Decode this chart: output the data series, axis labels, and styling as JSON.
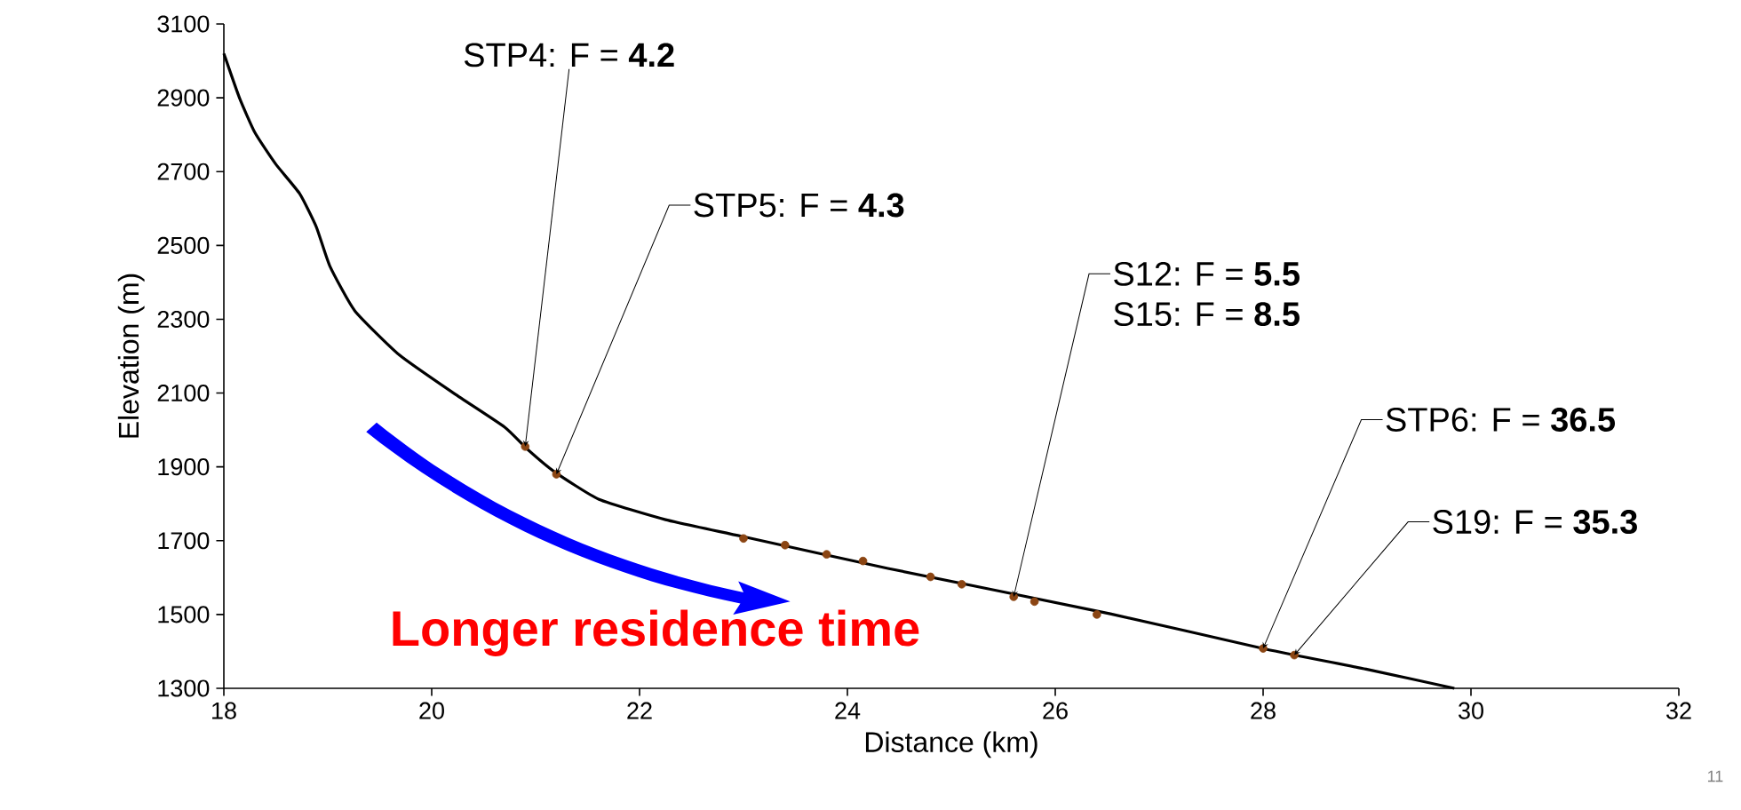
{
  "chart_data": {
    "type": "line",
    "xlabel": "Distance (km)",
    "ylabel": "Elevation (m)",
    "xlim": [
      18,
      32
    ],
    "xticks": [
      18,
      20,
      22,
      24,
      26,
      28,
      30,
      32
    ],
    "ylim": [
      1300,
      3100
    ],
    "yticks": [
      1300,
      1500,
      1700,
      1900,
      2100,
      2300,
      2500,
      2700,
      2900,
      3100
    ],
    "grid": false,
    "series": [
      {
        "color": "#000000",
        "line_style": "solid",
        "x": [
          18,
          18.15,
          18.3,
          18.5,
          18.73,
          18.89,
          19.02,
          19.26,
          19.69,
          20.22,
          20.7,
          20.92,
          21.18,
          21.61,
          22.25,
          22.98,
          24.39,
          26.53,
          28.03,
          28.99,
          29.84
        ],
        "values": [
          3020,
          2900,
          2805,
          2720,
          2640,
          2550,
          2444,
          2323,
          2203,
          2098,
          2008,
          1948,
          1887,
          1812,
          1757,
          1712,
          1625,
          1502,
          1406,
          1352,
          1300
        ]
      },
      {
        "type": "scatter",
        "color": "#8b4513",
        "marker": "circle",
        "x": [
          20.9,
          21.2,
          23,
          23.4,
          23.8,
          24.15,
          24.8,
          25.1,
          25.6,
          25.8,
          26.4,
          28,
          28.3
        ],
        "values": [
          1955,
          1880,
          1706,
          1688,
          1663,
          1645,
          1602,
          1582,
          1548,
          1535,
          1500,
          1408,
          1390
        ]
      }
    ],
    "annotations": [
      {
        "text": "STP4: F = **4.2**",
        "x": 20.9,
        "y": 1955
      },
      {
        "text": "STP5: F = **4.3**",
        "x": 21.2,
        "y": 1880
      },
      {
        "text": "S12: F = **5.5**",
        "x": 25.6,
        "y": 1548
      },
      "S15: F = **8.5**",
      {
        "text": "STP6: F = **36.5**",
        "x": 28,
        "y": 1408
      },
      {
        "text": "S19: F = **35.3**",
        "x": 28.3,
        "y": 1390
      },
      "**Longer residence time**",
      "11"
    ]
  }
}
